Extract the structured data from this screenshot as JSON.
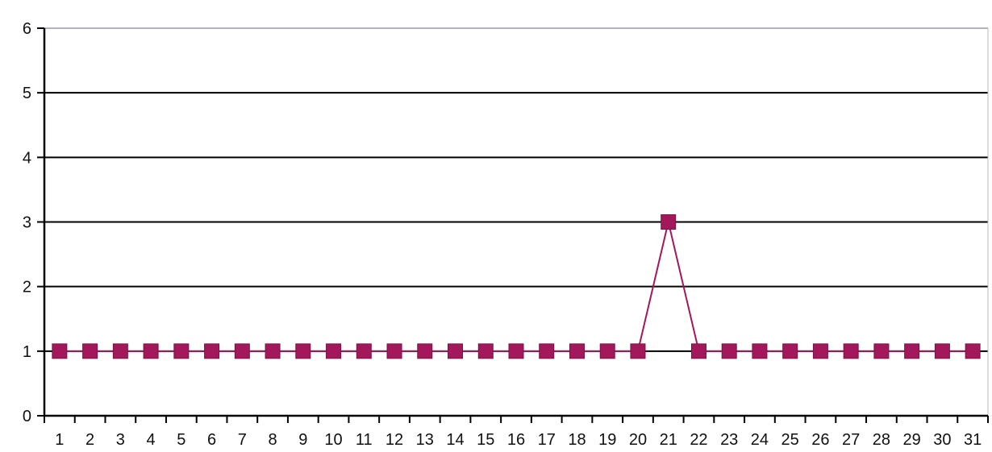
{
  "chart_data": {
    "type": "line",
    "categories": [
      "1",
      "2",
      "3",
      "4",
      "5",
      "6",
      "7",
      "8",
      "9",
      "10",
      "11",
      "12",
      "13",
      "14",
      "15",
      "16",
      "17",
      "18",
      "19",
      "20",
      "21",
      "22",
      "23",
      "24",
      "25",
      "26",
      "27",
      "28",
      "29",
      "30",
      "31"
    ],
    "series": [
      {
        "values": [
          1.0,
          1.0,
          1.0,
          1.0,
          1.0,
          1.0,
          1.0,
          1.0,
          1.0,
          1.0,
          1.0,
          1.0,
          1.0,
          1.0,
          1.0,
          1.0,
          1.0,
          1.0,
          1.0,
          1.0,
          3.0,
          1.0,
          1.0,
          1.0,
          1.0,
          1.0,
          1.0,
          1.0,
          1.0,
          1.0,
          1.0
        ],
        "color": "#a3185a"
      }
    ],
    "yticks": [
      "0",
      "1",
      "2",
      "3",
      "4",
      "5",
      "6"
    ],
    "ylim": [
      0,
      6
    ],
    "grid": true,
    "gridline_color": "#000000",
    "title": "",
    "xlabel": "",
    "ylabel": ""
  }
}
